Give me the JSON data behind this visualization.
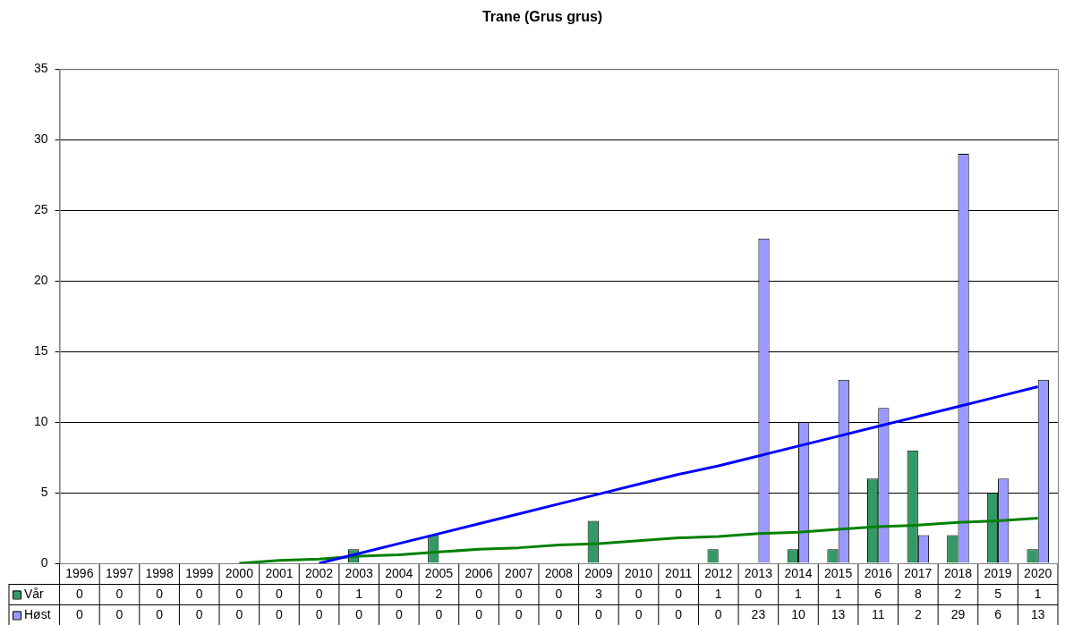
{
  "chart_data": {
    "type": "bar",
    "title": "Trane (Grus grus)",
    "categories": [
      "1996",
      "1997",
      "1998",
      "1999",
      "2000",
      "2001",
      "2002",
      "2003",
      "2004",
      "2005",
      "2006",
      "2007",
      "2008",
      "2009",
      "2010",
      "2011",
      "2012",
      "2013",
      "2014",
      "2015",
      "2016",
      "2017",
      "2018",
      "2019",
      "2020"
    ],
    "series": [
      {
        "name": "Vår",
        "color": "#339966",
        "values": [
          0,
          0,
          0,
          0,
          0,
          0,
          0,
          1,
          0,
          2,
          0,
          0,
          0,
          3,
          0,
          0,
          1,
          0,
          1,
          1,
          6,
          8,
          2,
          5,
          1
        ],
        "value_labels": [
          "0",
          "0",
          "0",
          "0",
          "0",
          "0",
          "0",
          "1",
          "0",
          "2",
          "0",
          "0",
          "0",
          "3",
          "0",
          "0",
          "1",
          "0",
          "1",
          "1",
          "6",
          "8",
          "2",
          "5",
          "1"
        ]
      },
      {
        "name": "Høst",
        "color": "#9999ff",
        "values": [
          0,
          0,
          0,
          0,
          0,
          0,
          0,
          0,
          0,
          0,
          0,
          0,
          0,
          0,
          0,
          0,
          0,
          23,
          10,
          13,
          11,
          2,
          29,
          6,
          13
        ],
        "value_labels": [
          "0",
          "0",
          "0",
          "0",
          "0",
          "0",
          "0",
          "0",
          "0",
          "0",
          "0",
          "0",
          "0",
          "0",
          "0",
          "0",
          "0",
          "23",
          "10",
          "13",
          "11",
          "2",
          "29",
          "6",
          "13"
        ]
      },
      {
        "type": "line",
        "color": "#0000ff",
        "values": [
          null,
          null,
          null,
          null,
          null,
          null,
          0,
          0.7,
          1.4,
          2.1,
          2.8,
          3.5,
          4.2,
          4.9,
          5.6,
          6.3,
          6.9,
          7.6,
          8.3,
          9.0,
          9.7,
          10.4,
          11.1,
          11.8,
          12.5
        ]
      },
      {
        "type": "line",
        "color": "#008000",
        "values": [
          null,
          null,
          null,
          null,
          0,
          0.2,
          0.3,
          0.5,
          0.6,
          0.8,
          1.0,
          1.1,
          1.3,
          1.4,
          1.6,
          1.8,
          1.9,
          2.1,
          2.2,
          2.4,
          2.6,
          2.7,
          2.9,
          3.0,
          3.2
        ]
      }
    ],
    "ylim": [
      0,
      35
    ],
    "yticks": [
      0,
      5,
      10,
      15,
      20,
      25,
      30,
      35
    ],
    "grid": "y",
    "legend": "bottom",
    "marker": "none"
  }
}
